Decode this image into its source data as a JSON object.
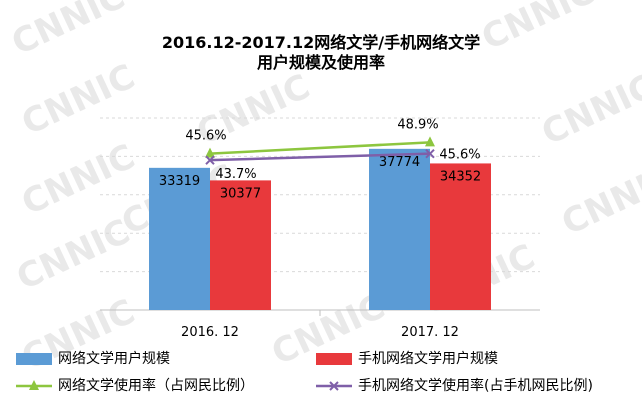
{
  "title_line1": "2016.12-2017.12网络文学/手机网络文学",
  "title_line2": "用户规模及使用率",
  "watermark_text": "CNNIC",
  "colors": {
    "bar_a": "#5b9bd5",
    "bar_b": "#e8393c",
    "line_a": "#8dc63f",
    "line_b": "#7f5fa8",
    "grid": "#d9d9d9",
    "watermark": "#e9e9e9"
  },
  "chart_data": {
    "type": "bar",
    "categories": [
      "2016. 12",
      "2017. 12"
    ],
    "ylim": [
      0,
      45000
    ],
    "grid": true,
    "series": [
      {
        "name": "网络文学用户规模",
        "kind": "bar",
        "values": [
          33319,
          37774
        ],
        "labels": [
          "33319",
          "37774"
        ]
      },
      {
        "name": "手机网络文学用户规模",
        "kind": "bar",
        "values": [
          30377,
          34352
        ],
        "labels": [
          "30377",
          "34352"
        ]
      },
      {
        "name": "网络文学使用率（占网民比例）",
        "kind": "line",
        "marker": "triangle",
        "values": [
          45.6,
          48.9
        ],
        "labels": [
          "45.6%",
          "48.9%"
        ]
      },
      {
        "name": "手机网络文学使用率(占手机网民比例)",
        "kind": "line",
        "marker": "x",
        "values": [
          43.7,
          45.6
        ],
        "labels": [
          "43.7%",
          "45.6%"
        ]
      }
    ],
    "secondary_ylim": [
      0,
      56
    ]
  },
  "legend": {
    "item1": "网络文学用户规模",
    "item2": "手机网络文学用户规模",
    "item3": "网络文学使用率（占网民比例）",
    "item4": "手机网络文学使用率(占手机网民比例)"
  }
}
